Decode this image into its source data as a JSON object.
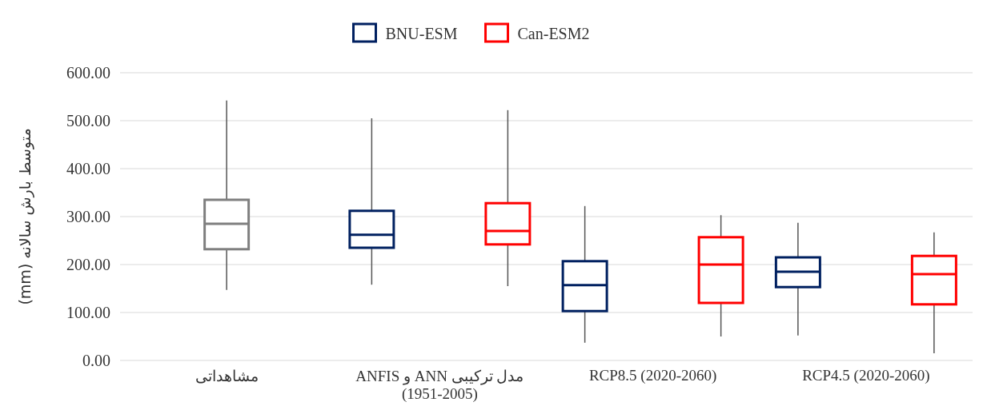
{
  "chart_data": {
    "type": "box",
    "ylabel": "متوسط بارش سالانه (mm)",
    "categories": [
      "مشاهداتی",
      "مدل ترکیبی ANN و ANFIS (1951-2005)",
      "RCP8.5 (2020-2060)",
      "RCP4.5 (2020-2060)"
    ],
    "series": [
      {
        "color": "#7f7f7f",
        "boxes": [
          {
            "low": 147,
            "q1": 232,
            "median": 285,
            "q3": 335,
            "high": 542
          },
          null,
          null,
          null
        ]
      },
      {
        "name": "BNU-ESM",
        "color": "#002060",
        "boxes": [
          null,
          {
            "low": 158,
            "q1": 235,
            "median": 262,
            "q3": 312,
            "high": 505
          },
          {
            "low": 37,
            "q1": 103,
            "median": 157,
            "q3": 207,
            "high": 322
          },
          {
            "low": 52,
            "q1": 153,
            "median": 185,
            "q3": 215,
            "high": 287
          }
        ]
      },
      {
        "name": "Can-ESM2",
        "color": "#ff0000",
        "boxes": [
          null,
          {
            "low": 155,
            "q1": 242,
            "median": 270,
            "q3": 328,
            "high": 522
          },
          {
            "low": 50,
            "q1": 120,
            "median": 200,
            "q3": 257,
            "high": 303
          },
          {
            "low": 15,
            "q1": 117,
            "median": 180,
            "q3": 218,
            "high": 267
          }
        ]
      }
    ],
    "ylim": [
      0,
      600
    ],
    "yticks": [
      {
        "value": 0,
        "label": "0.00"
      },
      {
        "value": 100,
        "label": "100.00"
      },
      {
        "value": 200,
        "label": "200.00"
      },
      {
        "value": 300,
        "label": "300.00"
      },
      {
        "value": 400,
        "label": "400.00"
      },
      {
        "value": 500,
        "label": "500.00"
      },
      {
        "value": 600,
        "label": "600.00"
      }
    ],
    "grid": "y",
    "legend": "top"
  }
}
